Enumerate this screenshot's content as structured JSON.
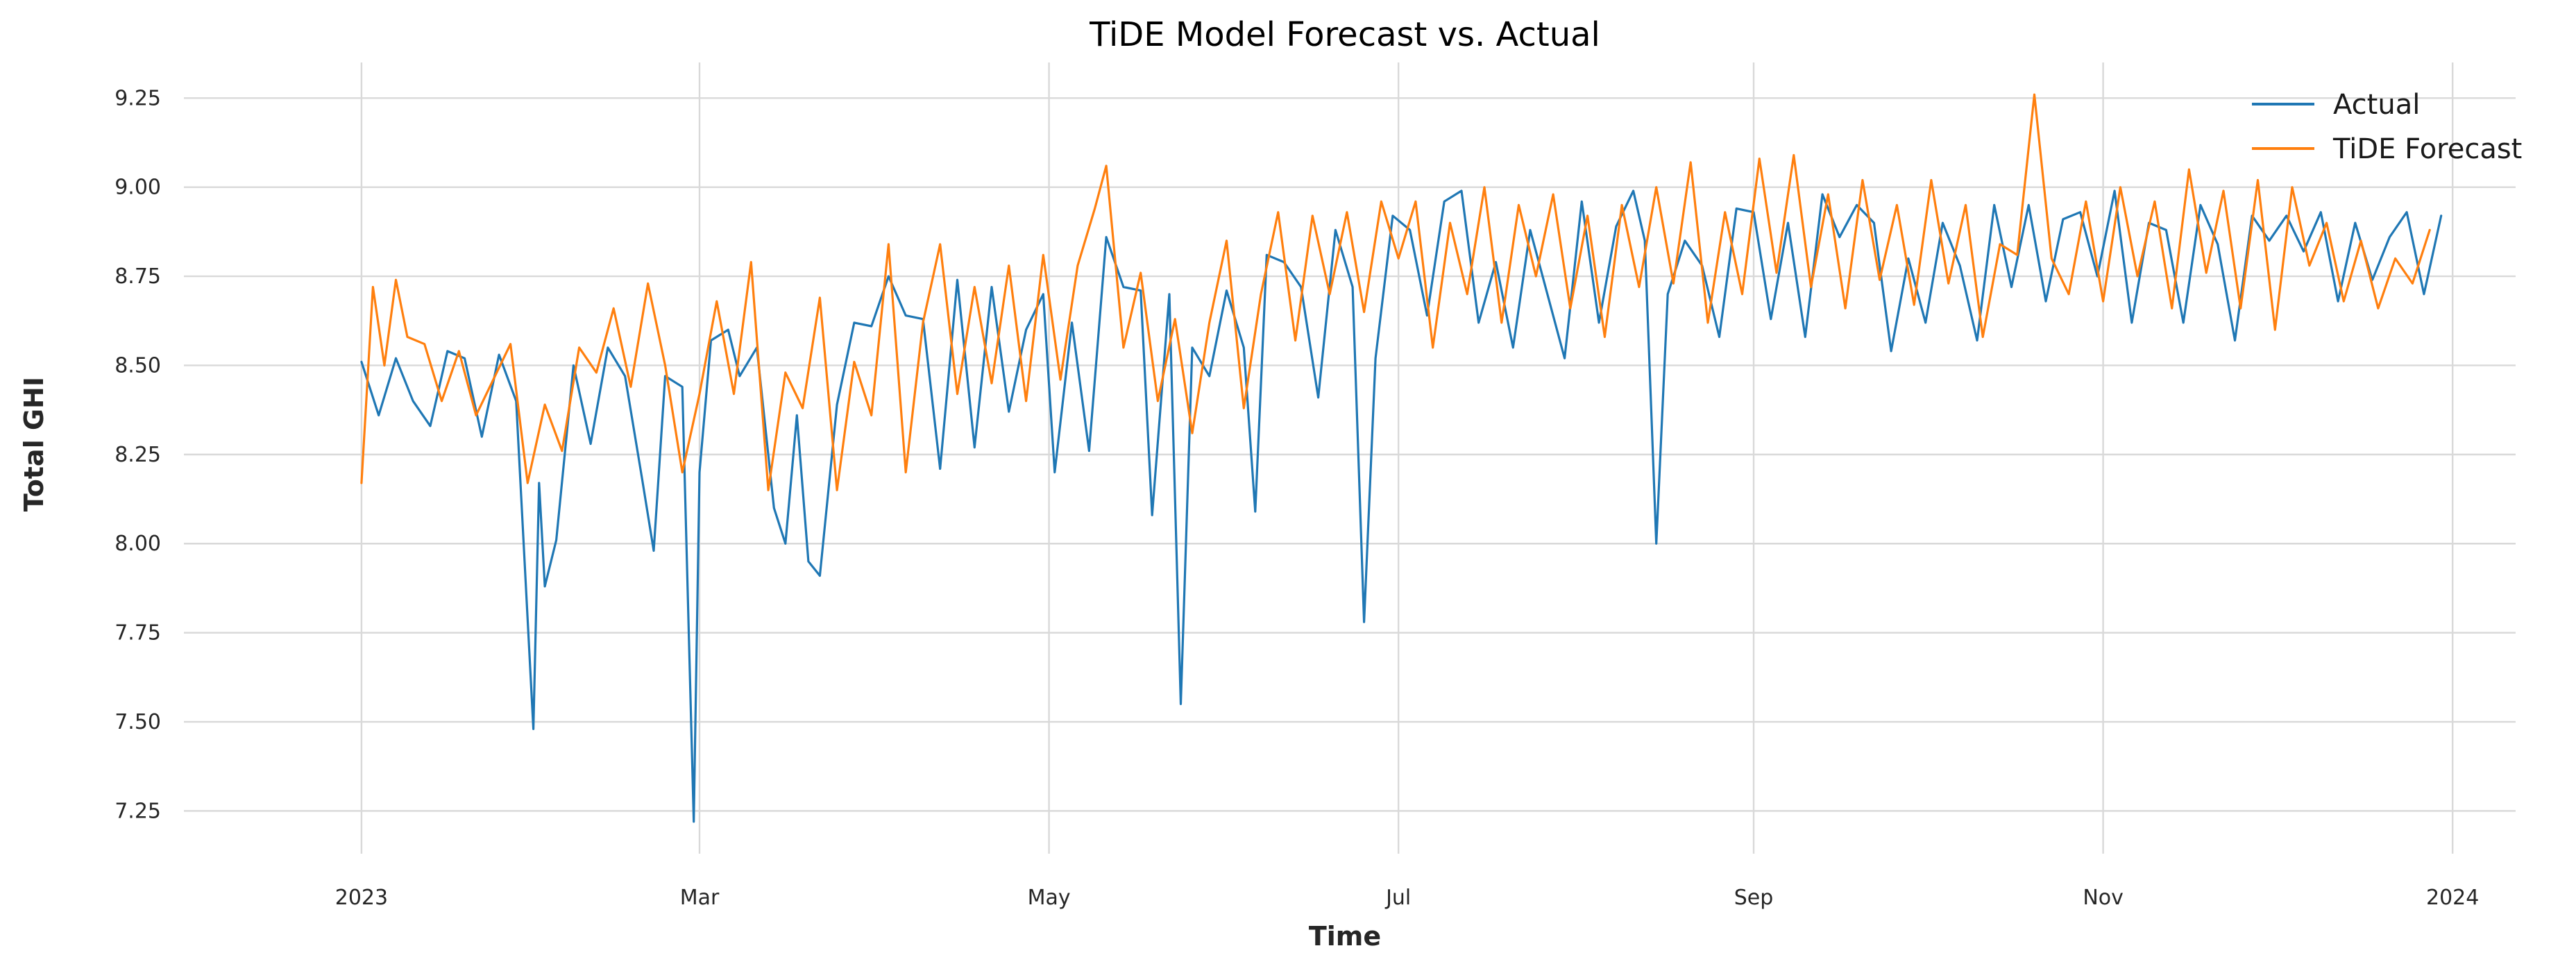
{
  "chart_data": {
    "type": "line",
    "title": "TiDE Model Forecast vs. Actual",
    "xlabel": "Time",
    "ylabel": "Total GHI",
    "x_range": [
      "2022-12-01",
      "2024-01-12"
    ],
    "ylim": [
      7.13,
      9.35
    ],
    "grid": true,
    "legend_position": "top-right",
    "x_ticks": [
      {
        "date": "2023-01-01",
        "label": "2023"
      },
      {
        "date": "2023-03-01",
        "label": "Mar"
      },
      {
        "date": "2023-05-01",
        "label": "May"
      },
      {
        "date": "2023-07-01",
        "label": "Jul"
      },
      {
        "date": "2023-09-01",
        "label": "Sep"
      },
      {
        "date": "2023-11-01",
        "label": "Nov"
      },
      {
        "date": "2024-01-01",
        "label": "2024"
      }
    ],
    "y_ticks": [
      {
        "value": 7.25,
        "label": "7.25"
      },
      {
        "value": 7.5,
        "label": "7.50"
      },
      {
        "value": 7.75,
        "label": "7.75"
      },
      {
        "value": 8.0,
        "label": "8.00"
      },
      {
        "value": 8.25,
        "label": "8.25"
      },
      {
        "value": 8.5,
        "label": "8.50"
      },
      {
        "value": 8.75,
        "label": "8.75"
      },
      {
        "value": 9.0,
        "label": "9.00"
      },
      {
        "value": 9.25,
        "label": "9.25"
      }
    ],
    "series": [
      {
        "name": "Actual",
        "color": "#1f77b4",
        "points": [
          [
            "2023-01-01",
            8.51
          ],
          [
            "2023-01-04",
            8.36
          ],
          [
            "2023-01-07",
            8.52
          ],
          [
            "2023-01-10",
            8.4
          ],
          [
            "2023-01-13",
            8.33
          ],
          [
            "2023-01-16",
            8.54
          ],
          [
            "2023-01-19",
            8.52
          ],
          [
            "2023-01-22",
            8.3
          ],
          [
            "2023-01-25",
            8.53
          ],
          [
            "2023-01-28",
            8.4
          ],
          [
            "2023-01-31",
            7.48
          ],
          [
            "2023-02-01",
            8.17
          ],
          [
            "2023-02-02",
            7.88
          ],
          [
            "2023-02-04",
            8.01
          ],
          [
            "2023-02-07",
            8.5
          ],
          [
            "2023-02-10",
            8.28
          ],
          [
            "2023-02-13",
            8.55
          ],
          [
            "2023-02-16",
            8.47
          ],
          [
            "2023-02-19",
            8.18
          ],
          [
            "2023-02-21",
            7.98
          ],
          [
            "2023-02-23",
            8.47
          ],
          [
            "2023-02-26",
            8.44
          ],
          [
            "2023-02-28",
            7.22
          ],
          [
            "2023-03-01",
            8.2
          ],
          [
            "2023-03-03",
            8.57
          ],
          [
            "2023-03-06",
            8.6
          ],
          [
            "2023-03-08",
            8.47
          ],
          [
            "2023-03-11",
            8.55
          ],
          [
            "2023-03-14",
            8.1
          ],
          [
            "2023-03-16",
            8.0
          ],
          [
            "2023-03-18",
            8.36
          ],
          [
            "2023-03-20",
            7.95
          ],
          [
            "2023-03-22",
            7.91
          ],
          [
            "2023-03-25",
            8.39
          ],
          [
            "2023-03-28",
            8.62
          ],
          [
            "2023-03-31",
            8.61
          ],
          [
            "2023-04-03",
            8.75
          ],
          [
            "2023-04-06",
            8.64
          ],
          [
            "2023-04-09",
            8.63
          ],
          [
            "2023-04-12",
            8.21
          ],
          [
            "2023-04-15",
            8.74
          ],
          [
            "2023-04-18",
            8.27
          ],
          [
            "2023-04-21",
            8.72
          ],
          [
            "2023-04-24",
            8.37
          ],
          [
            "2023-04-27",
            8.6
          ],
          [
            "2023-04-30",
            8.7
          ],
          [
            "2023-05-02",
            8.2
          ],
          [
            "2023-05-05",
            8.62
          ],
          [
            "2023-05-08",
            8.26
          ],
          [
            "2023-05-11",
            8.86
          ],
          [
            "2023-05-14",
            8.72
          ],
          [
            "2023-05-17",
            8.71
          ],
          [
            "2023-05-19",
            8.08
          ],
          [
            "2023-05-22",
            8.7
          ],
          [
            "2023-05-24",
            7.55
          ],
          [
            "2023-05-26",
            8.55
          ],
          [
            "2023-05-29",
            8.47
          ],
          [
            "2023-06-01",
            8.71
          ],
          [
            "2023-06-04",
            8.55
          ],
          [
            "2023-06-06",
            8.09
          ],
          [
            "2023-06-08",
            8.81
          ],
          [
            "2023-06-11",
            8.79
          ],
          [
            "2023-06-14",
            8.72
          ],
          [
            "2023-06-17",
            8.41
          ],
          [
            "2023-06-20",
            8.88
          ],
          [
            "2023-06-23",
            8.72
          ],
          [
            "2023-06-25",
            7.78
          ],
          [
            "2023-06-27",
            8.52
          ],
          [
            "2023-06-30",
            8.92
          ],
          [
            "2023-07-03",
            8.88
          ],
          [
            "2023-07-06",
            8.64
          ],
          [
            "2023-07-09",
            8.96
          ],
          [
            "2023-07-12",
            8.99
          ],
          [
            "2023-07-15",
            8.62
          ],
          [
            "2023-07-18",
            8.79
          ],
          [
            "2023-07-21",
            8.55
          ],
          [
            "2023-07-24",
            8.88
          ],
          [
            "2023-07-27",
            8.7
          ],
          [
            "2023-07-30",
            8.52
          ],
          [
            "2023-08-02",
            8.96
          ],
          [
            "2023-08-05",
            8.62
          ],
          [
            "2023-08-08",
            8.89
          ],
          [
            "2023-08-11",
            8.99
          ],
          [
            "2023-08-13",
            8.85
          ],
          [
            "2023-08-15",
            8.0
          ],
          [
            "2023-08-17",
            8.7
          ],
          [
            "2023-08-20",
            8.85
          ],
          [
            "2023-08-23",
            8.78
          ],
          [
            "2023-08-26",
            8.58
          ],
          [
            "2023-08-29",
            8.94
          ],
          [
            "2023-09-01",
            8.93
          ],
          [
            "2023-09-04",
            8.63
          ],
          [
            "2023-09-07",
            8.9
          ],
          [
            "2023-09-10",
            8.58
          ],
          [
            "2023-09-13",
            8.98
          ],
          [
            "2023-09-16",
            8.86
          ],
          [
            "2023-09-19",
            8.95
          ],
          [
            "2023-09-22",
            8.9
          ],
          [
            "2023-09-25",
            8.54
          ],
          [
            "2023-09-28",
            8.8
          ],
          [
            "2023-10-01",
            8.62
          ],
          [
            "2023-10-04",
            8.9
          ],
          [
            "2023-10-07",
            8.78
          ],
          [
            "2023-10-10",
            8.57
          ],
          [
            "2023-10-13",
            8.95
          ],
          [
            "2023-10-16",
            8.72
          ],
          [
            "2023-10-19",
            8.95
          ],
          [
            "2023-10-22",
            8.68
          ],
          [
            "2023-10-25",
            8.91
          ],
          [
            "2023-10-28",
            8.93
          ],
          [
            "2023-10-31",
            8.75
          ],
          [
            "2023-11-03",
            8.99
          ],
          [
            "2023-11-06",
            8.62
          ],
          [
            "2023-11-09",
            8.9
          ],
          [
            "2023-11-12",
            8.88
          ],
          [
            "2023-11-15",
            8.62
          ],
          [
            "2023-11-18",
            8.95
          ],
          [
            "2023-11-21",
            8.84
          ],
          [
            "2023-11-24",
            8.57
          ],
          [
            "2023-11-27",
            8.92
          ],
          [
            "2023-11-30",
            8.85
          ],
          [
            "2023-12-03",
            8.92
          ],
          [
            "2023-12-06",
            8.82
          ],
          [
            "2023-12-09",
            8.93
          ],
          [
            "2023-12-12",
            8.68
          ],
          [
            "2023-12-15",
            8.9
          ],
          [
            "2023-12-18",
            8.74
          ],
          [
            "2023-12-21",
            8.86
          ],
          [
            "2023-12-24",
            8.93
          ],
          [
            "2023-12-27",
            8.7
          ],
          [
            "2023-12-30",
            8.92
          ]
        ]
      },
      {
        "name": "TiDE Forecast",
        "color": "#ff7f0e",
        "points": [
          [
            "2023-01-01",
            8.17
          ],
          [
            "2023-01-03",
            8.72
          ],
          [
            "2023-01-05",
            8.5
          ],
          [
            "2023-01-07",
            8.74
          ],
          [
            "2023-01-09",
            8.58
          ],
          [
            "2023-01-12",
            8.56
          ],
          [
            "2023-01-15",
            8.4
          ],
          [
            "2023-01-18",
            8.54
          ],
          [
            "2023-01-21",
            8.36
          ],
          [
            "2023-01-24",
            8.46
          ],
          [
            "2023-01-27",
            8.56
          ],
          [
            "2023-01-30",
            8.17
          ],
          [
            "2023-02-02",
            8.39
          ],
          [
            "2023-02-05",
            8.26
          ],
          [
            "2023-02-08",
            8.55
          ],
          [
            "2023-02-11",
            8.48
          ],
          [
            "2023-02-14",
            8.66
          ],
          [
            "2023-02-17",
            8.44
          ],
          [
            "2023-02-20",
            8.73
          ],
          [
            "2023-02-23",
            8.5
          ],
          [
            "2023-02-26",
            8.2
          ],
          [
            "2023-03-01",
            8.42
          ],
          [
            "2023-03-04",
            8.68
          ],
          [
            "2023-03-07",
            8.42
          ],
          [
            "2023-03-10",
            8.79
          ],
          [
            "2023-03-13",
            8.15
          ],
          [
            "2023-03-16",
            8.48
          ],
          [
            "2023-03-19",
            8.38
          ],
          [
            "2023-03-22",
            8.69
          ],
          [
            "2023-03-25",
            8.15
          ],
          [
            "2023-03-28",
            8.51
          ],
          [
            "2023-03-31",
            8.36
          ],
          [
            "2023-04-03",
            8.84
          ],
          [
            "2023-04-06",
            8.2
          ],
          [
            "2023-04-09",
            8.62
          ],
          [
            "2023-04-12",
            8.84
          ],
          [
            "2023-04-15",
            8.42
          ],
          [
            "2023-04-18",
            8.72
          ],
          [
            "2023-04-21",
            8.45
          ],
          [
            "2023-04-24",
            8.78
          ],
          [
            "2023-04-27",
            8.4
          ],
          [
            "2023-04-30",
            8.81
          ],
          [
            "2023-05-03",
            8.46
          ],
          [
            "2023-05-06",
            8.78
          ],
          [
            "2023-05-09",
            8.94
          ],
          [
            "2023-05-11",
            9.06
          ],
          [
            "2023-05-14",
            8.55
          ],
          [
            "2023-05-17",
            8.76
          ],
          [
            "2023-05-20",
            8.4
          ],
          [
            "2023-05-23",
            8.63
          ],
          [
            "2023-05-26",
            8.31
          ],
          [
            "2023-05-29",
            8.62
          ],
          [
            "2023-06-01",
            8.85
          ],
          [
            "2023-06-04",
            8.38
          ],
          [
            "2023-06-07",
            8.7
          ],
          [
            "2023-06-10",
            8.93
          ],
          [
            "2023-06-13",
            8.57
          ],
          [
            "2023-06-16",
            8.92
          ],
          [
            "2023-06-19",
            8.7
          ],
          [
            "2023-06-22",
            8.93
          ],
          [
            "2023-06-25",
            8.65
          ],
          [
            "2023-06-28",
            8.96
          ],
          [
            "2023-07-01",
            8.8
          ],
          [
            "2023-07-04",
            8.96
          ],
          [
            "2023-07-07",
            8.55
          ],
          [
            "2023-07-10",
            8.9
          ],
          [
            "2023-07-13",
            8.7
          ],
          [
            "2023-07-16",
            9.0
          ],
          [
            "2023-07-19",
            8.62
          ],
          [
            "2023-07-22",
            8.95
          ],
          [
            "2023-07-25",
            8.75
          ],
          [
            "2023-07-28",
            8.98
          ],
          [
            "2023-07-31",
            8.66
          ],
          [
            "2023-08-03",
            8.92
          ],
          [
            "2023-08-06",
            8.58
          ],
          [
            "2023-08-09",
            8.95
          ],
          [
            "2023-08-12",
            8.72
          ],
          [
            "2023-08-15",
            9.0
          ],
          [
            "2023-08-18",
            8.73
          ],
          [
            "2023-08-21",
            9.07
          ],
          [
            "2023-08-24",
            8.62
          ],
          [
            "2023-08-27",
            8.93
          ],
          [
            "2023-08-30",
            8.7
          ],
          [
            "2023-09-02",
            9.08
          ],
          [
            "2023-09-05",
            8.76
          ],
          [
            "2023-09-08",
            9.09
          ],
          [
            "2023-09-11",
            8.72
          ],
          [
            "2023-09-14",
            8.98
          ],
          [
            "2023-09-17",
            8.66
          ],
          [
            "2023-09-20",
            9.02
          ],
          [
            "2023-09-23",
            8.74
          ],
          [
            "2023-09-26",
            8.95
          ],
          [
            "2023-09-29",
            8.67
          ],
          [
            "2023-10-02",
            9.02
          ],
          [
            "2023-10-05",
            8.73
          ],
          [
            "2023-10-08",
            8.95
          ],
          [
            "2023-10-11",
            8.58
          ],
          [
            "2023-10-14",
            8.84
          ],
          [
            "2023-10-17",
            8.81
          ],
          [
            "2023-10-20",
            9.26
          ],
          [
            "2023-10-23",
            8.8
          ],
          [
            "2023-10-26",
            8.7
          ],
          [
            "2023-10-29",
            8.96
          ],
          [
            "2023-11-01",
            8.68
          ],
          [
            "2023-11-04",
            9.0
          ],
          [
            "2023-11-07",
            8.75
          ],
          [
            "2023-11-10",
            8.96
          ],
          [
            "2023-11-13",
            8.66
          ],
          [
            "2023-11-16",
            9.05
          ],
          [
            "2023-11-19",
            8.76
          ],
          [
            "2023-11-22",
            8.99
          ],
          [
            "2023-11-25",
            8.66
          ],
          [
            "2023-11-28",
            9.02
          ],
          [
            "2023-12-01",
            8.6
          ],
          [
            "2023-12-04",
            9.0
          ],
          [
            "2023-12-07",
            8.78
          ],
          [
            "2023-12-10",
            8.9
          ],
          [
            "2023-12-13",
            8.68
          ],
          [
            "2023-12-16",
            8.85
          ],
          [
            "2023-12-19",
            8.66
          ],
          [
            "2023-12-22",
            8.8
          ],
          [
            "2023-12-25",
            8.73
          ],
          [
            "2023-12-28",
            8.88
          ]
        ]
      }
    ]
  }
}
